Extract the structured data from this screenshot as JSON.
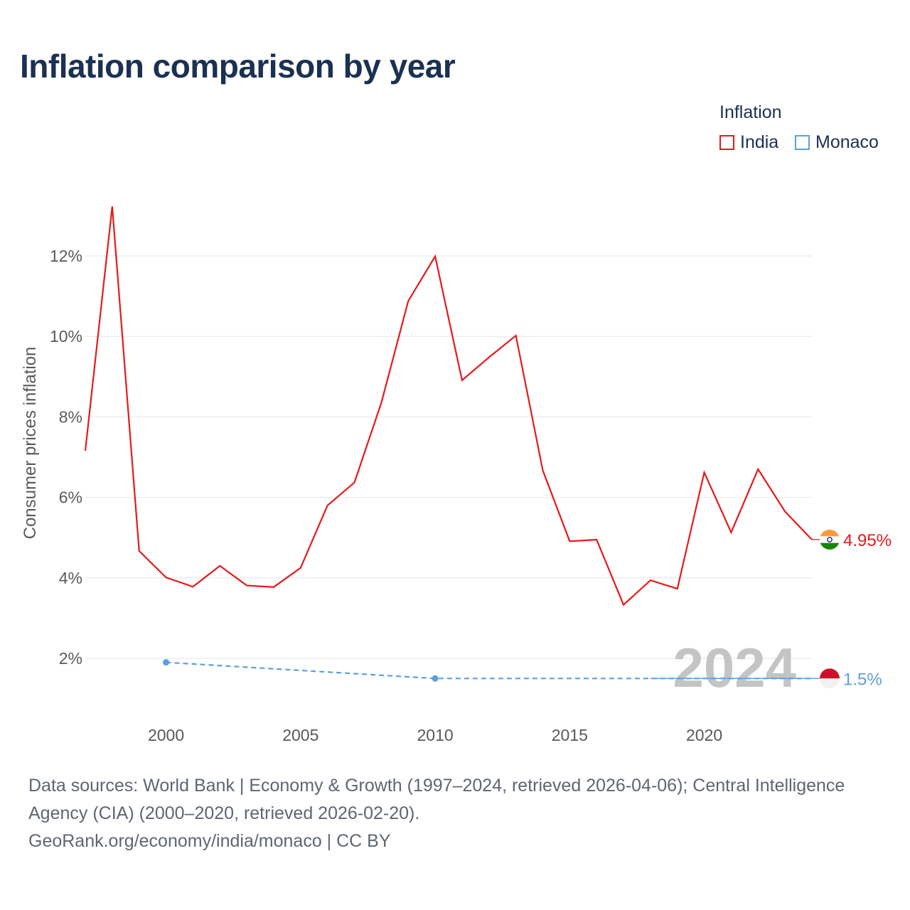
{
  "title": "Inflation comparison by year",
  "legend": {
    "title": "Inflation",
    "items": [
      {
        "label": "India",
        "color": "#e8191a"
      },
      {
        "label": "Monaco",
        "color": "#5b9fe0"
      }
    ]
  },
  "chart_data": {
    "type": "line",
    "title": "Inflation comparison by year",
    "xlabel": "",
    "ylabel": "Consumer prices inflation",
    "xlim": [
      1997,
      2024
    ],
    "ylim": [
      1,
      13.5
    ],
    "x_ticks": [
      2000,
      2005,
      2010,
      2015,
      2020
    ],
    "y_ticks": [
      2,
      4,
      6,
      8,
      10,
      12
    ],
    "y_tick_labels": [
      "2%",
      "4%",
      "6%",
      "8%",
      "10%",
      "12%"
    ],
    "grid": "horizontal",
    "year_watermark": "2024",
    "series": [
      {
        "name": "India",
        "color": "#e8191a",
        "style": "solid",
        "end_label": "4.95%",
        "x": [
          1997,
          1998,
          1999,
          2000,
          2001,
          2002,
          2003,
          2004,
          2005,
          2006,
          2007,
          2008,
          2009,
          2010,
          2011,
          2012,
          2013,
          2014,
          2015,
          2016,
          2017,
          2018,
          2019,
          2020,
          2021,
          2022,
          2023,
          2024
        ],
        "values": [
          7.16,
          13.23,
          4.67,
          4.01,
          3.78,
          4.3,
          3.81,
          3.77,
          4.25,
          5.8,
          6.37,
          8.35,
          10.88,
          11.99,
          8.91,
          9.48,
          10.02,
          6.67,
          4.91,
          4.95,
          3.33,
          3.94,
          3.73,
          6.62,
          5.13,
          6.7,
          5.65,
          4.95
        ]
      },
      {
        "name": "Monaco",
        "color": "#5b9fe0",
        "style": "dashed",
        "end_label": "1.5%",
        "x": [
          2000,
          2010,
          2024
        ],
        "values": [
          1.9,
          1.5,
          1.5
        ],
        "markers_at": [
          2000,
          2010
        ]
      }
    ]
  },
  "footer": {
    "sources": "Data sources: World Bank | Economy & Growth (1997–2024, retrieved 2026-04-06); Central Intelligence Agency (CIA) (2000–2020, retrieved 2026-02-20).",
    "credit": "GeoRank.org/economy/india/monaco | CC BY"
  }
}
